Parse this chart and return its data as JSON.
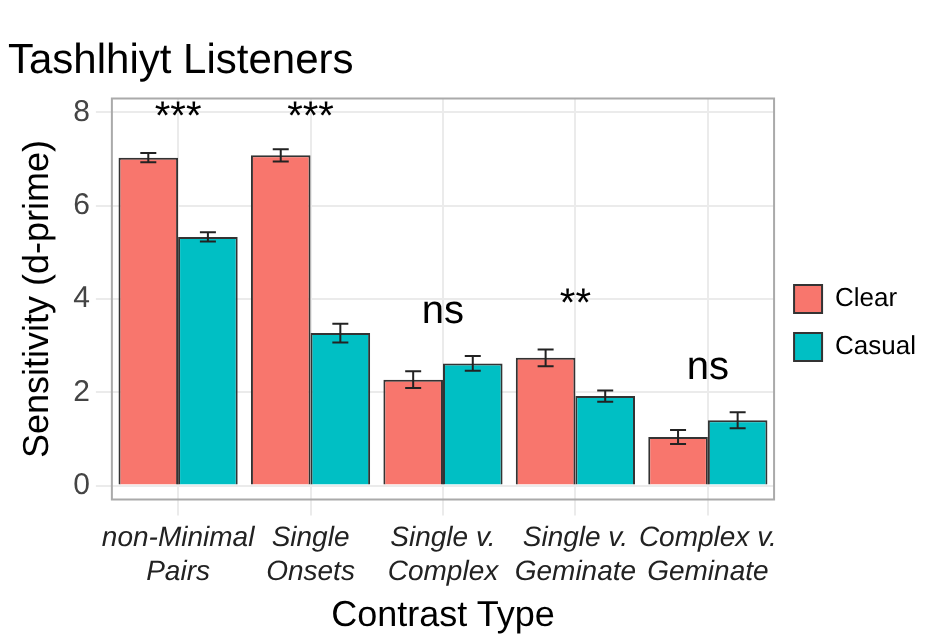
{
  "chart_data": {
    "type": "bar",
    "title": "Tashlhiyt Listeners",
    "xlabel": "Contrast Type",
    "ylabel": "Sensitivity (d-prime)",
    "categories": [
      "non-Minimal Pairs",
      "Single Onsets",
      "Single v. Complex",
      "Single v. Geminate",
      "Complex v. Geminate"
    ],
    "series": [
      {
        "name": "Clear",
        "color": "#f8766d",
        "values": [
          7.03,
          7.08,
          2.27,
          2.74,
          1.04
        ],
        "errors": [
          0.1,
          0.13,
          0.18,
          0.18,
          0.15
        ]
      },
      {
        "name": "Casual",
        "color": "#00bfc4",
        "values": [
          5.33,
          3.27,
          2.62,
          1.92,
          1.4
        ],
        "errors": [
          0.1,
          0.2,
          0.16,
          0.12,
          0.17
        ]
      }
    ],
    "ylim": [
      -0.3,
      8.3
    ],
    "yticks": [
      0,
      2,
      4,
      6,
      8
    ],
    "grid": true,
    "legend": "right",
    "annotations": [
      "***",
      "***",
      "ns",
      "**",
      "ns"
    ]
  }
}
